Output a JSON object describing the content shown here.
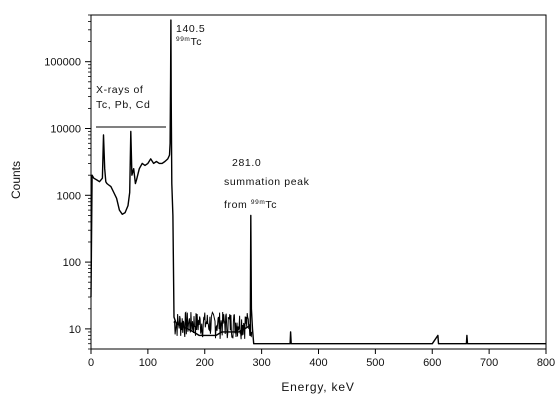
{
  "chart_data": {
    "type": "line",
    "title": "",
    "xlabel": "Energy, keV",
    "ylabel": "Counts",
    "xlim": [
      0,
      800
    ],
    "ylim": [
      5,
      500000
    ],
    "yscale": "log",
    "grid": false,
    "x_ticks": [
      0,
      100,
      200,
      300,
      400,
      500,
      600,
      700,
      800
    ],
    "x_tick_labels": [
      "0",
      "100",
      "200",
      "300",
      "400",
      "500",
      "600",
      "700",
      "800"
    ],
    "y_ticks": [
      10,
      100,
      1000,
      10000,
      100000
    ],
    "y_tick_labels": [
      "10",
      "100",
      "1000",
      "10000",
      "100000"
    ],
    "series": [
      {
        "x": [
          0,
          2,
          5,
          10,
          15,
          20,
          22,
          24,
          26,
          28,
          30,
          35,
          40,
          45,
          50,
          55,
          60,
          65,
          68,
          70,
          72,
          75,
          78,
          80,
          85,
          90,
          95,
          100,
          105,
          110,
          115,
          120,
          125,
          130,
          135,
          138,
          139,
          140,
          140.5,
          141,
          142,
          144,
          146,
          150,
          160,
          170,
          180,
          190,
          200,
          210,
          220,
          230,
          240,
          250,
          260,
          270,
          278,
          280,
          281,
          282,
          284,
          286,
          300,
          350,
          351,
          352,
          400,
          600,
          610,
          611,
          612,
          660,
          661,
          662,
          800
        ],
        "y": [
          30,
          2000,
          1800,
          1700,
          1600,
          1800,
          8000,
          2500,
          1600,
          1500,
          1450,
          1350,
          1100,
          900,
          600,
          520,
          550,
          700,
          1100,
          9000,
          2000,
          2500,
          1500,
          1700,
          2500,
          3000,
          2800,
          3000,
          3500,
          3000,
          3200,
          3000,
          3000,
          3200,
          3500,
          4000,
          6000,
          60000,
          420000,
          30000,
          1500,
          500,
          15,
          12,
          11,
          10,
          9,
          8,
          8,
          8,
          8,
          9,
          9,
          9,
          9,
          10,
          11,
          12,
          500,
          20,
          10,
          6,
          6,
          6,
          9,
          6,
          6,
          6,
          8,
          6,
          6,
          6,
          8,
          6,
          6
        ],
        "color": "#000000"
      }
    ],
    "annotations": [
      {
        "text": "140.5",
        "superscript": "",
        "suffix": ""
      },
      {
        "text": "",
        "superscript": "99m",
        "suffix": "Tc"
      },
      {
        "text": "X-rays of",
        "superscript": "",
        "suffix": ""
      },
      {
        "text": "Tc, Pb, Cd",
        "superscript": "",
        "suffix": ""
      },
      {
        "text": "281.0",
        "superscript": "",
        "suffix": ""
      },
      {
        "text": "summation peak",
        "superscript": "",
        "suffix": ""
      },
      {
        "text": "from ",
        "superscript": "99m",
        "suffix": "Tc"
      }
    ]
  }
}
